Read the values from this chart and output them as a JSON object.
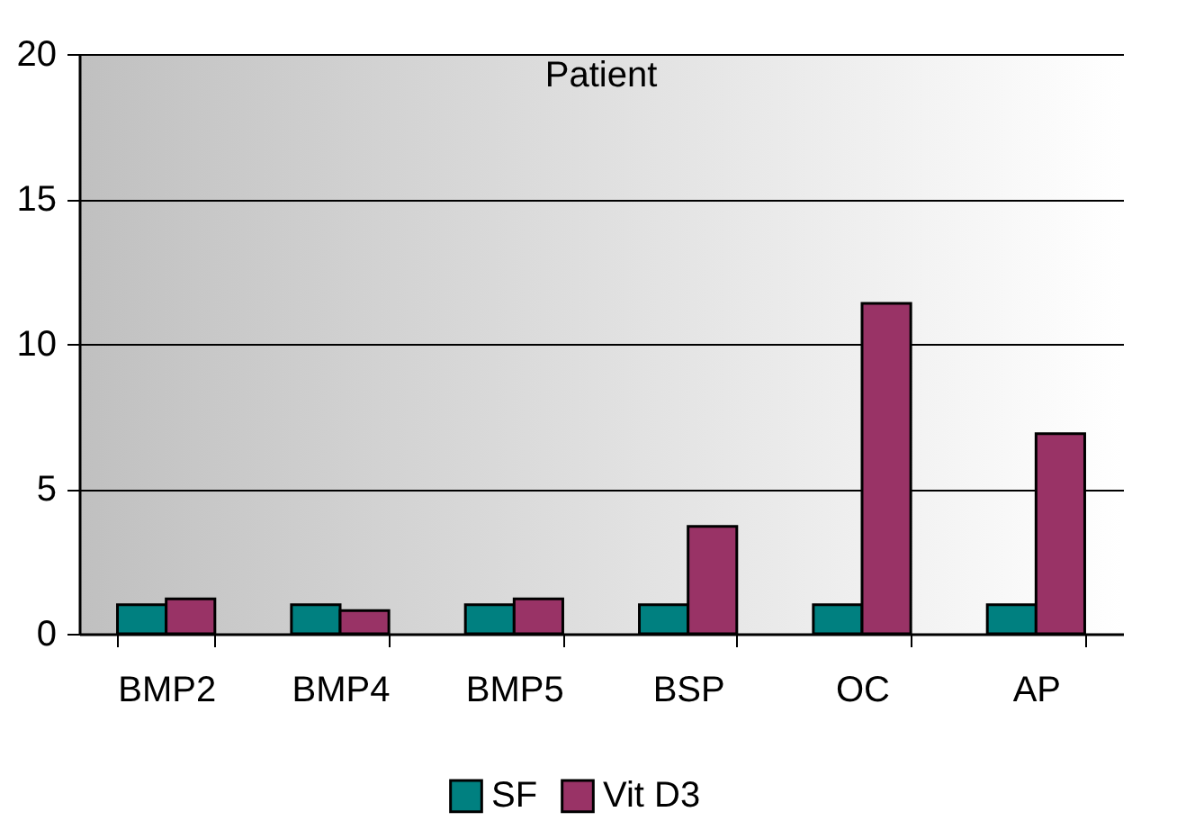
{
  "chart_data": {
    "type": "bar",
    "title": "Patient",
    "categories": [
      "BMP2",
      "BMP4",
      "BMP5",
      "BSP",
      "OC",
      "AP"
    ],
    "series": [
      {
        "name": "SF",
        "color": "#008080",
        "values": [
          1,
          1,
          1,
          1,
          1,
          1
        ]
      },
      {
        "name": "Vit D3",
        "color": "#993366",
        "values": [
          1.2,
          0.8,
          1.2,
          3.7,
          11.4,
          6.9
        ]
      }
    ],
    "ylim": [
      0,
      20
    ],
    "yticks": [
      0,
      5,
      10,
      15,
      20
    ],
    "grid": "y",
    "legend": "bottom"
  }
}
